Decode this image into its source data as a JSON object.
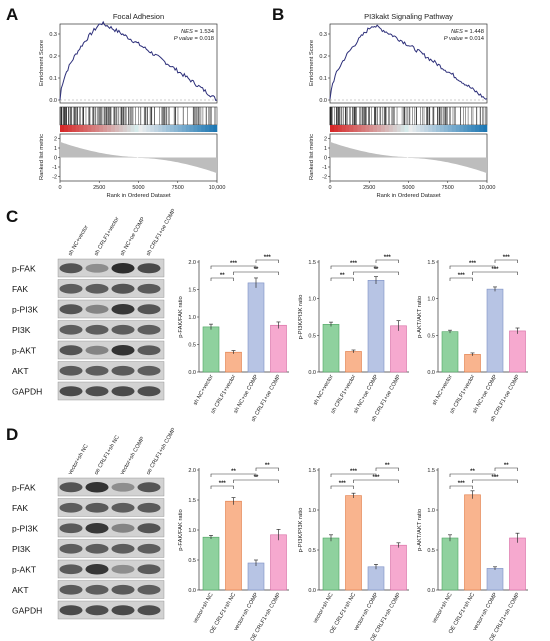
{
  "panels": {
    "A": "A",
    "B": "B",
    "C": "C",
    "D": "D"
  },
  "gsea": [
    {
      "id": "focal",
      "title": "Focal Adhesion",
      "nes_label": "NES",
      "nes": "= 1.534",
      "p_label": "P value",
      "p": "= 0.018",
      "ylabel_es": "Enrichment Score",
      "ylabel_rank": "Ranked list metric",
      "xlabel": "Rank in Ordered Dataset",
      "es_ticks": [
        "0.3",
        "0.2",
        "0.1",
        "0.0"
      ],
      "rank_ticks": [
        "2",
        "1",
        "0",
        "-1",
        "-2"
      ],
      "x_ticks": [
        "0",
        "2500",
        "5000",
        "7500",
        "10,000"
      ],
      "line_color": "#2d2f7a"
    },
    {
      "id": "pi3k",
      "title": "PI3kakt Signaling Pathway",
      "nes_label": "NES",
      "nes": "= 1.448",
      "p_label": "P value",
      "p": "= 0.014",
      "ylabel_es": "Enrichment Score",
      "ylabel_rank": "Ranked list metric",
      "xlabel": "Rank in Ordered Dataset",
      "es_ticks": [
        "0.3",
        "0.2",
        "0.1",
        "0.0"
      ],
      "rank_ticks": [
        "2",
        "1",
        "0",
        "-1",
        "-2"
      ],
      "x_ticks": [
        "0",
        "2500",
        "5000",
        "7500",
        "10,000"
      ],
      "line_color": "#2d2f7a"
    }
  ],
  "blot_rows": [
    "p-FAK",
    "FAK",
    "p-PI3K",
    "PI3K",
    "p-AKT",
    "AKT",
    "GAPDH"
  ],
  "lanes_C": [
    "sh NC+vector",
    "sh CRLF1+vector",
    "sh NC+oe COMP",
    "sh CRLF1+oe COMP"
  ],
  "lanes_D": [
    "vector+sh NC",
    "oe CRLF1+sh NC",
    "vector+sh COMP",
    "oe CRLF1+sh COMP"
  ],
  "colors": {
    "green": "#8fd19e",
    "orange": "#f9b48e",
    "blue": "#b7c4e4",
    "pink": "#f6a9cf",
    "green_edge": "#4fa463",
    "orange_edge": "#e07a45",
    "blue_edge": "#7c8fc4",
    "pink_edge": "#d76aa2"
  },
  "chart_data": [
    {
      "type": "bar",
      "panel": "C",
      "categories": [
        "sh NC+vector",
        "sh CRLF1+vector",
        "sh NC+oe COMP",
        "sh CRLF1+oe COMP"
      ],
      "values": [
        0.82,
        0.36,
        1.62,
        0.85
      ],
      "errors": [
        0.05,
        0.03,
        0.09,
        0.06
      ],
      "ylabel": "p-FAK/FAK ratio",
      "ylim": [
        0,
        2.0
      ],
      "yticks": [
        "0.0",
        "0.5",
        "1.0",
        "1.5",
        "2.0"
      ],
      "yticks_values": [
        0,
        0.5,
        1.0,
        1.5,
        2.0
      ],
      "sig_labels": [
        "**",
        "***",
        "**",
        "***"
      ]
    },
    {
      "type": "bar",
      "panel": "C",
      "categories": [
        "sh NC+vector",
        "sh CRLF1+vector",
        "sh NC+oe COMP",
        "sh CRLF1+oe COMP"
      ],
      "values": [
        0.65,
        0.28,
        1.25,
        0.63
      ],
      "errors": [
        0.03,
        0.02,
        0.05,
        0.07
      ],
      "ylabel": "p-PI3K/PI3K ratio",
      "ylim": [
        0,
        1.5
      ],
      "yticks": [
        "0.0",
        "0.5",
        "1.0",
        "1.5"
      ],
      "yticks_values": [
        0,
        0.5,
        1.0,
        1.5
      ],
      "sig_labels": [
        "**",
        "***",
        "**",
        "***"
      ]
    },
    {
      "type": "bar",
      "panel": "C",
      "categories": [
        "sh NC+vector",
        "sh CRLF1+vector",
        "sh NC+oe COMP",
        "sh CRLF1+oe COMP"
      ],
      "values": [
        0.55,
        0.24,
        1.13,
        0.56
      ],
      "errors": [
        0.02,
        0.02,
        0.03,
        0.04
      ],
      "ylabel": "p-AKT/AKT ratio",
      "ylim": [
        0,
        1.5
      ],
      "yticks": [
        "0.0",
        "0.5",
        "1.0",
        "1.5"
      ],
      "yticks_values": [
        0,
        0.5,
        1.0,
        1.5
      ],
      "sig_labels": [
        "***",
        "***",
        "***",
        "***"
      ]
    },
    {
      "type": "bar",
      "panel": "D",
      "categories": [
        "vector+sh NC",
        "OE CRLF1+sh NC",
        "vector+sh COMP",
        "OE CRLF1+sh COMP"
      ],
      "values": [
        0.88,
        1.48,
        0.45,
        0.92
      ],
      "errors": [
        0.03,
        0.06,
        0.05,
        0.09
      ],
      "ylabel": "p-FAK/FAK ratio",
      "ylim": [
        0,
        2.0
      ],
      "yticks": [
        "0.0",
        "0.5",
        "1.0",
        "1.5",
        "2.0"
      ],
      "yticks_values": [
        0,
        0.5,
        1.0,
        1.5,
        2.0
      ],
      "sig_labels": [
        "***",
        "**",
        "**",
        "**"
      ]
    },
    {
      "type": "bar",
      "panel": "D",
      "categories": [
        "vector+sh NC",
        "OE CRLF1+sh NC",
        "vector+sh COMP",
        "OE CRLF1+sh COMP"
      ],
      "values": [
        0.65,
        1.18,
        0.29,
        0.56
      ],
      "errors": [
        0.04,
        0.03,
        0.03,
        0.03
      ],
      "ylabel": "p-PI3K/PI3K ratio",
      "ylim": [
        0,
        1.5
      ],
      "yticks": [
        "0.0",
        "0.5",
        "1.0",
        "1.5"
      ],
      "yticks_values": [
        0,
        0.5,
        1.0,
        1.5
      ],
      "sig_labels": [
        "***",
        "***",
        "***",
        "**"
      ]
    },
    {
      "type": "bar",
      "panel": "D",
      "categories": [
        "vector+sh NC",
        "OE CRLF1+sh NC",
        "vector+sh COMP",
        "OE CRLF1+sh COMP"
      ],
      "values": [
        0.65,
        1.19,
        0.27,
        0.65
      ],
      "errors": [
        0.04,
        0.05,
        0.02,
        0.06
      ],
      "ylabel": "p-AKT/AKT ratio",
      "ylim": [
        0,
        1.5
      ],
      "yticks": [
        "0.0",
        "0.5",
        "1.0",
        "1.5"
      ],
      "yticks_values": [
        0,
        0.5,
        1.0,
        1.5
      ],
      "sig_labels": [
        "***",
        "**",
        "***",
        "**"
      ]
    }
  ]
}
